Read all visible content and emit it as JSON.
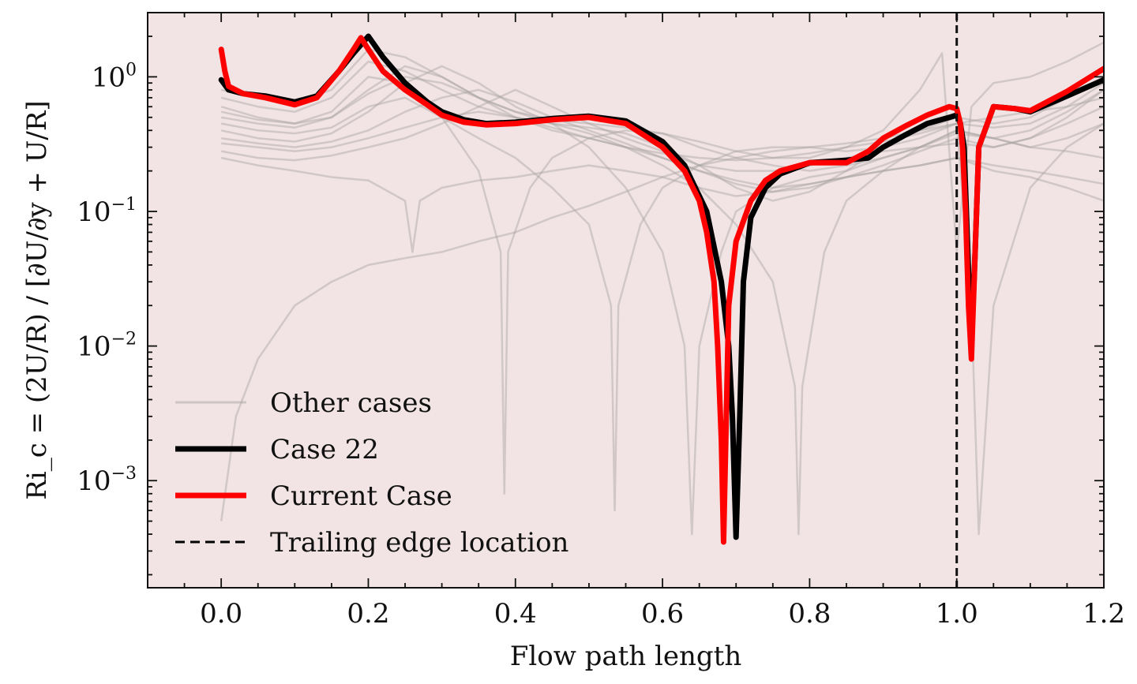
{
  "chart_data": {
    "type": "line",
    "xlabel": "Flow path length",
    "ylabel": "Ri_c = (2U/R) / [∂U/∂y + U/R]",
    "y_scale": "log",
    "xlim": [
      -0.1,
      1.2
    ],
    "ylim": [
      0.00016,
      3.0
    ],
    "x_ticks": [
      0.0,
      0.2,
      0.4,
      0.6,
      0.8,
      1.0,
      1.2
    ],
    "x_tick_labels": [
      "0.0",
      "0.2",
      "0.4",
      "0.6",
      "0.8",
      "1.0",
      "1.2"
    ],
    "y_ticks": [
      1,
      0.1,
      0.01,
      0.001
    ],
    "y_tick_labels": [
      {
        "base": "10",
        "exp": "0"
      },
      {
        "base": "10",
        "exp": "−1"
      },
      {
        "base": "10",
        "exp": "−2"
      },
      {
        "base": "10",
        "exp": "−3"
      }
    ],
    "background_color": "#f2e4e4",
    "grid": false,
    "legend_position": "lower-left",
    "legend": [
      {
        "label": "Other cases",
        "style": "thin-gray",
        "color": "#a9a3a3"
      },
      {
        "label": "Case 22",
        "style": "thick-solid",
        "color": "#000000"
      },
      {
        "label": "Current Case",
        "style": "thick-solid",
        "color": "#ff0000"
      },
      {
        "label": "Trailing edge location",
        "style": "dashed",
        "color": "#000000"
      }
    ],
    "trailing_edge_x": 1.0,
    "series": [
      {
        "name": "Case 22",
        "color": "#000000",
        "x": [
          0.0,
          0.01,
          0.03,
          0.06,
          0.1,
          0.13,
          0.16,
          0.18,
          0.2,
          0.22,
          0.25,
          0.28,
          0.3,
          0.33,
          0.36,
          0.4,
          0.45,
          0.5,
          0.55,
          0.6,
          0.63,
          0.66,
          0.68,
          0.69,
          0.695,
          0.7,
          0.705,
          0.71,
          0.72,
          0.74,
          0.76,
          0.8,
          0.85,
          0.88,
          0.9,
          0.93,
          0.96,
          0.99,
          1.0,
          1.005,
          1.01,
          1.015,
          1.02,
          1.025,
          1.03,
          1.05,
          1.08,
          1.1,
          1.15,
          1.2
        ],
        "y": [
          0.95,
          0.8,
          0.75,
          0.72,
          0.65,
          0.72,
          1.1,
          1.5,
          2.0,
          1.4,
          0.9,
          0.65,
          0.55,
          0.48,
          0.45,
          0.46,
          0.49,
          0.51,
          0.47,
          0.33,
          0.22,
          0.1,
          0.03,
          0.01,
          0.003,
          0.00038,
          0.003,
          0.03,
          0.09,
          0.15,
          0.19,
          0.23,
          0.24,
          0.25,
          0.3,
          0.37,
          0.45,
          0.5,
          0.52,
          0.45,
          0.3,
          0.05,
          0.01,
          0.05,
          0.3,
          0.6,
          0.58,
          0.55,
          0.72,
          0.95
        ]
      },
      {
        "name": "Current Case",
        "color": "#ff0000",
        "x": [
          0.0,
          0.005,
          0.01,
          0.03,
          0.06,
          0.1,
          0.13,
          0.16,
          0.18,
          0.19,
          0.2,
          0.22,
          0.25,
          0.28,
          0.3,
          0.33,
          0.36,
          0.4,
          0.45,
          0.5,
          0.55,
          0.6,
          0.63,
          0.65,
          0.66,
          0.67,
          0.675,
          0.68,
          0.683,
          0.686,
          0.69,
          0.7,
          0.72,
          0.74,
          0.76,
          0.8,
          0.85,
          0.88,
          0.9,
          0.93,
          0.96,
          0.99,
          1.0,
          1.005,
          1.008,
          1.012,
          1.016,
          1.02,
          1.025,
          1.03,
          1.05,
          1.08,
          1.1,
          1.15,
          1.2
        ],
        "y": [
          1.6,
          1.1,
          0.85,
          0.75,
          0.7,
          0.62,
          0.7,
          1.1,
          1.6,
          1.95,
          1.6,
          1.1,
          0.8,
          0.62,
          0.52,
          0.46,
          0.44,
          0.45,
          0.48,
          0.5,
          0.45,
          0.3,
          0.2,
          0.12,
          0.07,
          0.03,
          0.01,
          0.002,
          0.00035,
          0.002,
          0.02,
          0.06,
          0.12,
          0.17,
          0.2,
          0.23,
          0.23,
          0.28,
          0.35,
          0.43,
          0.52,
          0.6,
          0.58,
          0.45,
          0.3,
          0.1,
          0.02,
          0.008,
          0.05,
          0.3,
          0.6,
          0.58,
          0.56,
          0.78,
          1.15
        ]
      },
      {
        "name": "",
        "color": "#a9a3a3",
        "x": [
          0.0,
          0.05,
          0.1,
          0.15,
          0.2,
          0.25,
          0.3,
          0.35,
          0.4,
          0.45,
          0.5,
          0.55,
          0.6,
          0.65,
          0.7,
          0.75,
          0.8,
          0.85,
          0.9,
          0.95,
          1.0,
          1.05,
          1.1,
          1.15,
          1.2
        ],
        "y": [
          0.7,
          0.6,
          0.55,
          0.7,
          1.3,
          1.1,
          0.8,
          0.6,
          0.5,
          0.45,
          0.42,
          0.38,
          0.3,
          0.22,
          0.15,
          0.12,
          0.14,
          0.2,
          0.3,
          0.4,
          0.5,
          0.45,
          0.5,
          0.7,
          1.0
        ]
      },
      {
        "name": "",
        "color": "#a9a3a3",
        "x": [
          0.0,
          0.05,
          0.1,
          0.15,
          0.2,
          0.25,
          0.3,
          0.35,
          0.4,
          0.45,
          0.5,
          0.55,
          0.6,
          0.65,
          0.7,
          0.75,
          0.8,
          0.85,
          0.9,
          0.95,
          1.0,
          1.05,
          1.1,
          1.15,
          1.2
        ],
        "y": [
          0.5,
          0.45,
          0.42,
          0.5,
          0.8,
          1.2,
          1.0,
          0.7,
          0.5,
          0.4,
          0.35,
          0.3,
          0.25,
          0.2,
          0.16,
          0.14,
          0.15,
          0.18,
          0.22,
          0.28,
          0.35,
          0.3,
          0.35,
          0.5,
          0.8
        ]
      },
      {
        "name": "",
        "color": "#a9a3a3",
        "x": [
          0.0,
          0.05,
          0.1,
          0.15,
          0.2,
          0.25,
          0.3,
          0.35,
          0.4,
          0.45,
          0.5,
          0.55,
          0.6,
          0.65,
          0.7,
          0.75,
          0.8,
          0.85,
          0.9,
          0.95,
          1.0,
          1.05,
          1.1,
          1.15,
          1.2
        ],
        "y": [
          0.35,
          0.32,
          0.3,
          0.33,
          0.4,
          0.55,
          0.7,
          0.8,
          0.65,
          0.5,
          0.4,
          0.32,
          0.25,
          0.2,
          0.17,
          0.15,
          0.16,
          0.18,
          0.2,
          0.22,
          0.25,
          0.2,
          0.18,
          0.15,
          0.12
        ]
      },
      {
        "name": "",
        "color": "#a9a3a3",
        "x": [
          0.0,
          0.05,
          0.1,
          0.15,
          0.2,
          0.25,
          0.3,
          0.35,
          0.4,
          0.45,
          0.5,
          0.55,
          0.6,
          0.65,
          0.7,
          0.75,
          0.8,
          0.85,
          0.9,
          0.95,
          1.0,
          1.05,
          1.1,
          1.15,
          1.2
        ],
        "y": [
          0.28,
          0.25,
          0.24,
          0.26,
          0.3,
          0.35,
          0.45,
          0.6,
          0.8,
          0.6,
          0.45,
          0.35,
          0.28,
          0.22,
          0.2,
          0.2,
          0.22,
          0.25,
          0.28,
          0.3,
          0.32,
          0.3,
          0.35,
          0.45,
          0.6
        ]
      },
      {
        "name": "",
        "color": "#a9a3a3",
        "x": [
          0.0,
          0.02,
          0.05,
          0.1,
          0.15,
          0.2,
          0.25,
          0.3,
          0.35,
          0.4,
          0.45,
          0.5,
          0.55,
          0.6,
          0.65,
          0.7,
          0.75,
          0.8,
          0.85,
          0.9,
          0.95,
          1.0,
          1.05,
          1.1,
          1.15,
          1.2
        ],
        "y": [
          0.0005,
          0.003,
          0.008,
          0.02,
          0.03,
          0.04,
          0.045,
          0.05,
          0.06,
          0.07,
          0.09,
          0.11,
          0.14,
          0.18,
          0.22,
          0.25,
          0.28,
          0.3,
          0.32,
          0.35,
          0.4,
          0.45,
          0.5,
          0.55,
          0.6,
          0.7
        ]
      },
      {
        "name": "",
        "color": "#a9a3a3",
        "x": [
          0.0,
          0.05,
          0.1,
          0.15,
          0.2,
          0.25,
          0.26,
          0.27,
          0.3,
          0.35,
          0.4,
          0.45,
          0.5,
          0.55,
          0.6,
          0.65,
          0.7,
          0.75,
          0.8,
          0.85,
          0.9,
          0.95,
          1.0,
          1.05,
          1.1,
          1.15,
          1.2
        ],
        "y": [
          0.25,
          0.22,
          0.2,
          0.18,
          0.17,
          0.12,
          0.05,
          0.12,
          0.15,
          0.17,
          0.18,
          0.2,
          0.22,
          0.2,
          0.18,
          0.15,
          0.13,
          0.14,
          0.16,
          0.18,
          0.2,
          0.22,
          0.25,
          0.22,
          0.2,
          0.18,
          0.16
        ]
      },
      {
        "name": "",
        "color": "#a9a3a3",
        "x": [
          0.0,
          0.05,
          0.1,
          0.15,
          0.2,
          0.25,
          0.3,
          0.35,
          0.38,
          0.385,
          0.39,
          0.42,
          0.45,
          0.5,
          0.55,
          0.6,
          0.65,
          0.7,
          0.75,
          0.8,
          0.85,
          0.9,
          0.95,
          1.0,
          1.05,
          1.1,
          1.15,
          1.2
        ],
        "y": [
          0.6,
          0.5,
          0.45,
          0.55,
          1.0,
          0.9,
          0.5,
          0.2,
          0.05,
          0.0008,
          0.05,
          0.15,
          0.25,
          0.35,
          0.4,
          0.38,
          0.3,
          0.25,
          0.22,
          0.2,
          0.22,
          0.25,
          0.3,
          0.4,
          0.35,
          0.4,
          0.55,
          0.8
        ]
      },
      {
        "name": "",
        "color": "#a9a3a3",
        "x": [
          0.0,
          0.05,
          0.1,
          0.15,
          0.2,
          0.25,
          0.3,
          0.35,
          0.4,
          0.45,
          0.5,
          0.53,
          0.535,
          0.54,
          0.57,
          0.6,
          0.65,
          0.7,
          0.75,
          0.8,
          0.85,
          0.9,
          0.95,
          1.0,
          1.05,
          1.1,
          1.15,
          1.2
        ],
        "y": [
          0.45,
          0.4,
          0.38,
          0.42,
          0.6,
          0.7,
          0.5,
          0.35,
          0.25,
          0.15,
          0.08,
          0.02,
          0.0006,
          0.02,
          0.08,
          0.15,
          0.22,
          0.28,
          0.3,
          0.3,
          0.28,
          0.3,
          0.35,
          0.45,
          0.42,
          0.45,
          0.6,
          0.9
        ]
      },
      {
        "name": "",
        "color": "#a9a3a3",
        "x": [
          0.0,
          0.05,
          0.1,
          0.15,
          0.2,
          0.25,
          0.3,
          0.35,
          0.4,
          0.45,
          0.5,
          0.55,
          0.6,
          0.63,
          0.64,
          0.65,
          0.68,
          0.7,
          0.75,
          0.8,
          0.85,
          0.9,
          0.95,
          1.0,
          1.05,
          1.1,
          1.15,
          1.2
        ],
        "y": [
          0.4,
          0.35,
          0.33,
          0.38,
          0.55,
          0.9,
          1.2,
          0.9,
          0.6,
          0.45,
          0.3,
          0.15,
          0.05,
          0.01,
          0.0004,
          0.01,
          0.05,
          0.1,
          0.15,
          0.18,
          0.2,
          0.25,
          0.3,
          0.38,
          0.35,
          0.3,
          0.28,
          0.25
        ]
      },
      {
        "name": "",
        "color": "#a9a3a3",
        "x": [
          0.0,
          0.05,
          0.1,
          0.15,
          0.2,
          0.25,
          0.3,
          0.35,
          0.4,
          0.45,
          0.5,
          0.55,
          0.6,
          0.65,
          0.7,
          0.75,
          0.8,
          0.85,
          0.9,
          0.95,
          0.98,
          1.0,
          1.02,
          1.05,
          1.1,
          1.15,
          1.2
        ],
        "y": [
          0.8,
          0.7,
          0.65,
          0.8,
          1.6,
          1.4,
          1.0,
          0.7,
          0.55,
          0.48,
          0.45,
          0.42,
          0.38,
          0.33,
          0.28,
          0.25,
          0.25,
          0.3,
          0.4,
          0.8,
          1.5,
          0.05,
          0.6,
          0.9,
          1.0,
          1.3,
          1.8
        ]
      },
      {
        "name": "",
        "color": "#a9a3a3",
        "x": [
          0.0,
          0.05,
          0.1,
          0.15,
          0.2,
          0.25,
          0.3,
          0.35,
          0.4,
          0.45,
          0.5,
          0.55,
          0.6,
          0.65,
          0.7,
          0.75,
          0.78,
          0.785,
          0.79,
          0.82,
          0.85,
          0.9,
          0.95,
          1.0,
          1.05,
          1.1,
          1.15,
          1.2
        ],
        "y": [
          0.55,
          0.48,
          0.45,
          0.5,
          0.75,
          1.0,
          0.9,
          0.7,
          0.55,
          0.45,
          0.38,
          0.3,
          0.22,
          0.15,
          0.08,
          0.03,
          0.005,
          0.0004,
          0.005,
          0.05,
          0.12,
          0.2,
          0.3,
          0.4,
          0.35,
          0.3,
          0.35,
          0.45
        ]
      },
      {
        "name": "",
        "color": "#a9a3a3",
        "x": [
          0.0,
          0.05,
          0.1,
          0.15,
          0.2,
          0.25,
          0.3,
          0.35,
          0.4,
          0.45,
          0.5,
          0.55,
          0.6,
          0.65,
          0.7,
          0.75,
          0.8,
          0.85,
          0.9,
          0.95,
          1.0,
          1.02,
          1.03,
          1.05,
          1.1,
          1.15,
          1.2
        ],
        "y": [
          0.32,
          0.3,
          0.28,
          0.3,
          0.35,
          0.42,
          0.5,
          0.55,
          0.5,
          0.42,
          0.35,
          0.3,
          0.27,
          0.25,
          0.24,
          0.25,
          0.27,
          0.3,
          0.33,
          0.38,
          0.45,
          0.02,
          0.0004,
          0.02,
          0.15,
          0.3,
          0.45
        ]
      }
    ]
  }
}
